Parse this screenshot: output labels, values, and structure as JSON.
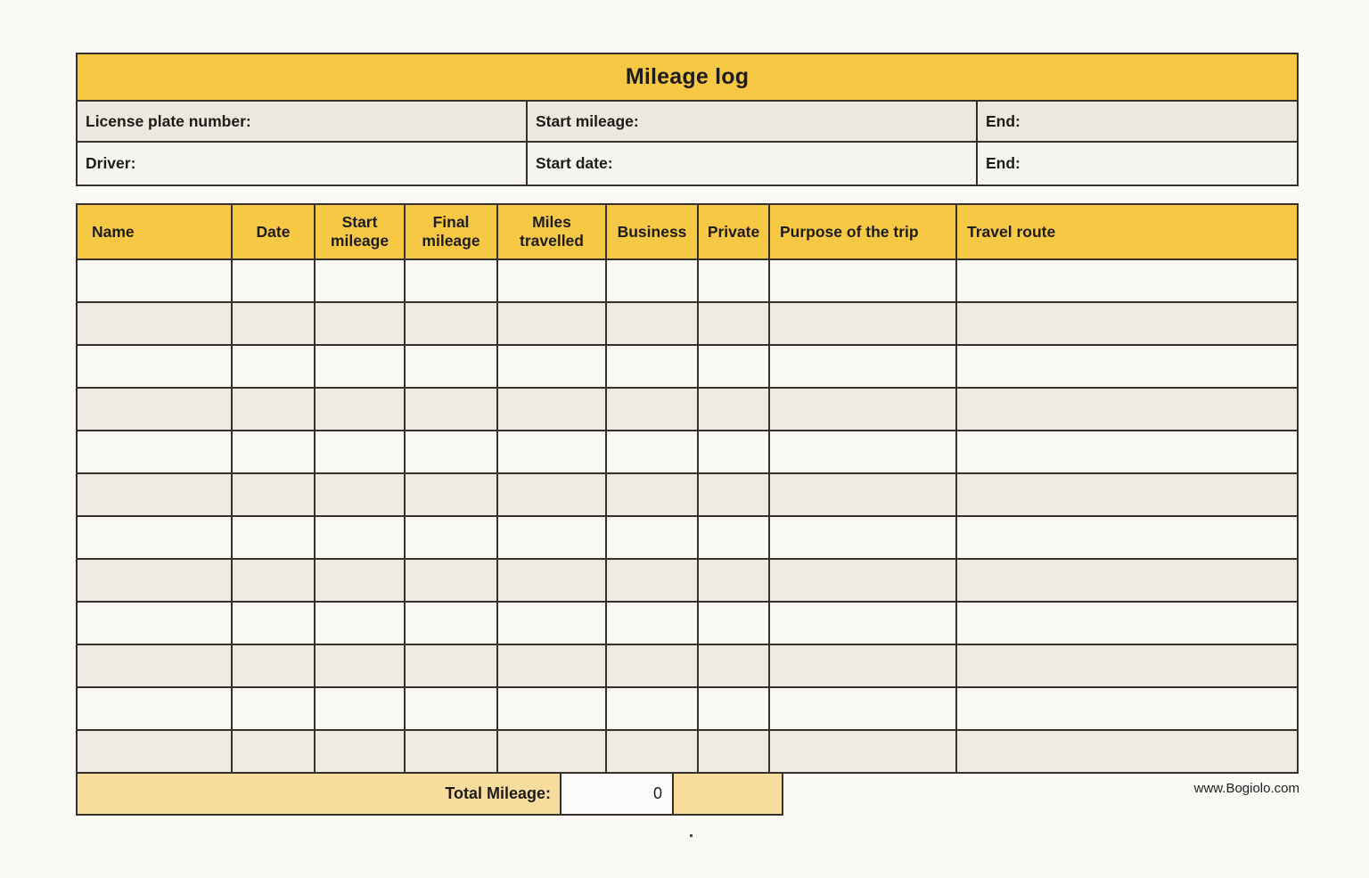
{
  "page": {
    "watermark": "www.Bogiolo.com"
  },
  "colors": {
    "accent_yellow": "#f7c843",
    "footer_tan": "#f8dc9d",
    "row_beige": "#efeae1",
    "row_white": "#faf8f4",
    "info_row1_bg": "#ece8df",
    "info_row2_bg": "#f7f5f0",
    "border": "#35302a",
    "text": "#1e1c19"
  },
  "header": {
    "title": "Mileage log",
    "row1": [
      {
        "label": "License plate number:"
      },
      {
        "label": "Start mileage:"
      },
      {
        "label": "End:"
      }
    ],
    "row2": [
      {
        "label": "Driver:"
      },
      {
        "label": "Start date:"
      },
      {
        "label": "End:"
      }
    ]
  },
  "log_table": {
    "columns": [
      "Name",
      "Date",
      "Start mileage",
      "Final mileage",
      "Miles travelled",
      "Business",
      "Private",
      "Purpose of the trip",
      "Travel route"
    ],
    "empty_row_count": 12
  },
  "summary": {
    "total_label": "Total Mileage:",
    "total_value": "0"
  }
}
